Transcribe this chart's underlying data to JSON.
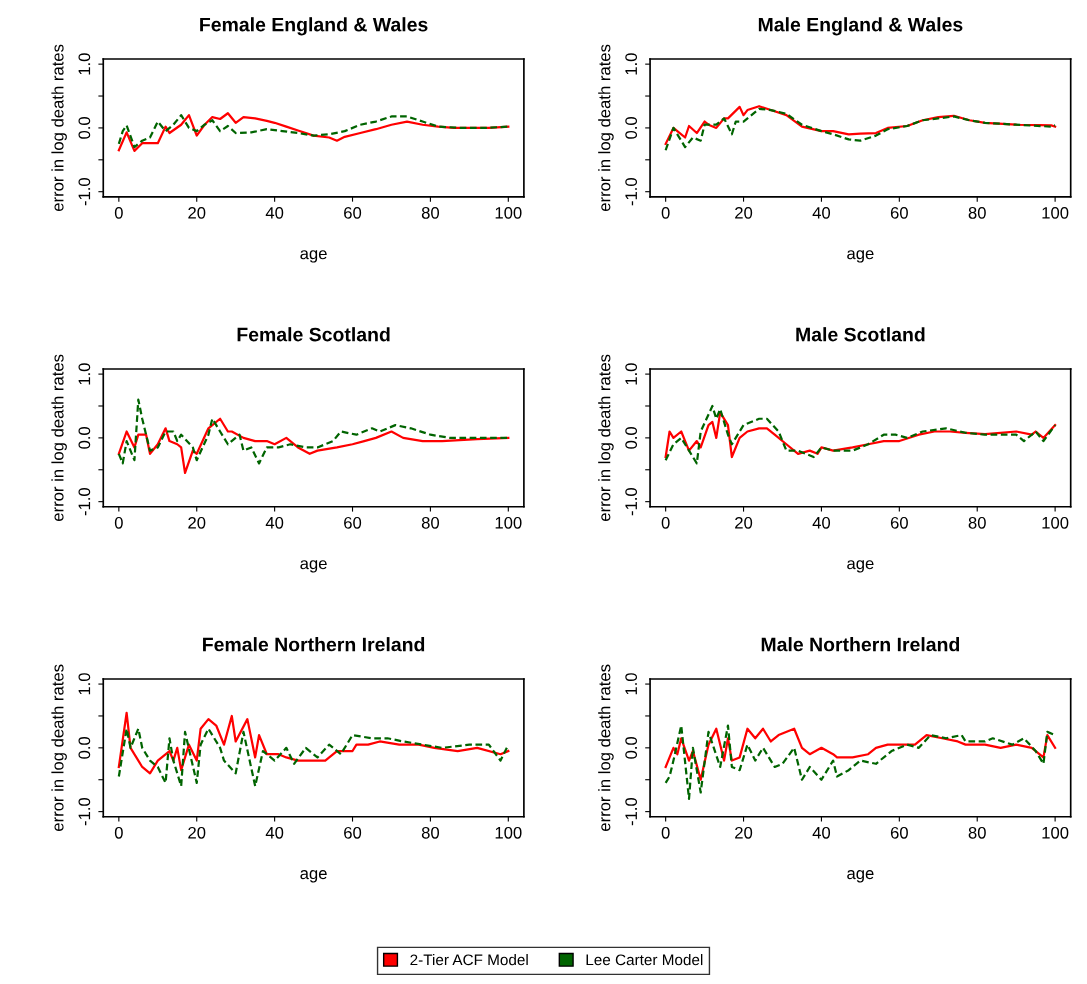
{
  "chart_data": [
    {
      "type": "line",
      "title": "Female England & Wales",
      "xlabel": "age",
      "ylabel": "error in log death rates",
      "xlim": [
        -4,
        104
      ],
      "ylim": [
        -1.08,
        1.08
      ],
      "xticks": [
        0,
        20,
        40,
        60,
        80,
        100
      ],
      "yticks": [
        {
          "value": -1,
          "label": "-1.0"
        },
        {
          "value": -0.5,
          "label": null
        },
        {
          "value": 0,
          "label": "0.0"
        },
        {
          "value": 0.5,
          "label": null
        },
        {
          "value": 1,
          "label": "1.0"
        }
      ],
      "grid": false,
      "legend": "bottom",
      "series": [
        {
          "name": "2-Tier ACF Model",
          "color": "#ff0000",
          "line_style": "solid",
          "x": [
            0,
            2,
            4,
            6,
            10,
            12,
            13,
            16,
            18,
            20,
            22,
            24,
            26,
            28,
            30,
            32,
            35,
            38,
            40,
            43,
            46,
            50,
            54,
            56,
            58,
            62,
            66,
            70,
            74,
            78,
            82,
            86,
            90,
            95,
            100
          ],
          "values": [
            -0.35,
            -0.07,
            -0.36,
            -0.24,
            -0.24,
            0.02,
            -0.08,
            0.05,
            0.2,
            -0.12,
            0.05,
            0.17,
            0.14,
            0.23,
            0.08,
            0.17,
            0.15,
            0.11,
            0.08,
            0.02,
            -0.04,
            -0.12,
            -0.15,
            -0.2,
            -0.14,
            -0.08,
            -0.02,
            0.05,
            0.1,
            0.05,
            0.02,
            0.0,
            0.0,
            0.0,
            0.02
          ]
        },
        {
          "name": "Lee Carter Model",
          "color": "#006400",
          "line_style": "dashed",
          "x": [
            0,
            1,
            2,
            4,
            6,
            8,
            10,
            12,
            14,
            16,
            18,
            20,
            22,
            24,
            26,
            28,
            30,
            34,
            38,
            42,
            46,
            50,
            54,
            58,
            62,
            66,
            70,
            74,
            78,
            82,
            88,
            94,
            100
          ],
          "values": [
            -0.25,
            -0.05,
            0.04,
            -0.3,
            -0.2,
            -0.15,
            0.1,
            -0.05,
            0.05,
            0.2,
            0.0,
            -0.05,
            0.05,
            0.12,
            -0.05,
            0.03,
            -0.08,
            -0.07,
            -0.02,
            -0.05,
            -0.08,
            -0.12,
            -0.1,
            -0.05,
            0.05,
            0.1,
            0.18,
            0.18,
            0.1,
            0.02,
            0.0,
            0.0,
            0.02
          ]
        }
      ]
    },
    {
      "type": "line",
      "title": "Male England & Wales",
      "xlabel": "age",
      "ylabel": "error in log death rates",
      "xlim": [
        -4,
        104
      ],
      "ylim": [
        -1.08,
        1.08
      ],
      "xticks": [
        0,
        20,
        40,
        60,
        80,
        100
      ],
      "yticks": [
        {
          "value": -1,
          "label": "-1.0"
        },
        {
          "value": -0.5,
          "label": null
        },
        {
          "value": 0,
          "label": "0.0"
        },
        {
          "value": 0.5,
          "label": null
        },
        {
          "value": 1,
          "label": "1.0"
        }
      ],
      "grid": false,
      "series": [
        {
          "color": "#ff0000",
          "line_style": "solid",
          "x": [
            0,
            2,
            3,
            5,
            6,
            8,
            10,
            11,
            13,
            15,
            16,
            19,
            20,
            21,
            24,
            27,
            31,
            35,
            40,
            43,
            47,
            50,
            54,
            57,
            62,
            66,
            70,
            74,
            78,
            82,
            90,
            99,
            100
          ],
          "values": [
            -0.25,
            0.0,
            -0.05,
            -0.15,
            0.03,
            -0.08,
            0.1,
            0.05,
            0.0,
            0.15,
            0.15,
            0.33,
            0.2,
            0.28,
            0.34,
            0.28,
            0.2,
            0.02,
            -0.05,
            -0.05,
            -0.1,
            -0.09,
            -0.08,
            0.0,
            0.03,
            0.12,
            0.17,
            0.19,
            0.12,
            0.08,
            0.05,
            0.04,
            0.02
          ]
        },
        {
          "color": "#006400",
          "line_style": "dashed",
          "x": [
            0,
            2,
            3,
            5,
            7,
            9,
            10,
            13,
            15,
            17,
            18,
            20,
            24,
            27,
            31,
            35,
            40,
            43,
            47,
            50,
            54,
            57,
            62,
            66,
            70,
            74,
            78,
            82,
            90,
            99,
            100
          ],
          "values": [
            -0.35,
            0.0,
            -0.1,
            -0.3,
            -0.15,
            -0.2,
            0.05,
            0.05,
            0.15,
            -0.1,
            0.1,
            0.1,
            0.3,
            0.28,
            0.22,
            0.05,
            -0.05,
            -0.1,
            -0.18,
            -0.2,
            -0.12,
            -0.02,
            0.03,
            0.12,
            0.15,
            0.18,
            0.12,
            0.08,
            0.05,
            0.02,
            0.04
          ]
        }
      ]
    },
    {
      "type": "line",
      "title": "Female Scotland",
      "xlabel": "age",
      "ylabel": "error in log death rates",
      "xlim": [
        -4,
        104
      ],
      "ylim": [
        -1.08,
        1.08
      ],
      "xticks": [
        0,
        20,
        40,
        60,
        80,
        100
      ],
      "yticks": [
        {
          "value": -1,
          "label": "-1.0"
        },
        {
          "value": -0.5,
          "label": null
        },
        {
          "value": 0,
          "label": "0.0"
        },
        {
          "value": 0.5,
          "label": null
        },
        {
          "value": 1,
          "label": "1.0"
        }
      ],
      "grid": false,
      "series": [
        {
          "color": "#ff0000",
          "line_style": "solid",
          "x": [
            0,
            2,
            4,
            5,
            7,
            8,
            10,
            12,
            13,
            15,
            16,
            17,
            19,
            20,
            23,
            26,
            28,
            29,
            32,
            35,
            38,
            40,
            43,
            46,
            49,
            51,
            56,
            60,
            63,
            66,
            70,
            73,
            78,
            83,
            92,
            100
          ],
          "values": [
            -0.25,
            0.1,
            -0.15,
            0.05,
            0.05,
            -0.25,
            -0.1,
            0.15,
            -0.05,
            -0.1,
            -0.15,
            -0.55,
            -0.2,
            -0.25,
            0.15,
            0.3,
            0.1,
            0.1,
            0.0,
            -0.05,
            -0.05,
            -0.1,
            0.0,
            -0.15,
            -0.25,
            -0.2,
            -0.15,
            -0.1,
            -0.05,
            0.0,
            0.1,
            0.0,
            -0.05,
            -0.05,
            -0.02,
            0.0
          ]
        },
        {
          "color": "#006400",
          "line_style": "dashed",
          "x": [
            0,
            1,
            2,
            4,
            5,
            6,
            8,
            10,
            12,
            14,
            15,
            16,
            19,
            20,
            23,
            24,
            26,
            28,
            31,
            32,
            34,
            36,
            38,
            41,
            44,
            48,
            51,
            55,
            57,
            61,
            65,
            67,
            71,
            75,
            80,
            85,
            92,
            100
          ],
          "values": [
            -0.25,
            -0.4,
            -0.05,
            -0.35,
            0.6,
            0.3,
            -0.2,
            -0.15,
            0.1,
            0.1,
            -0.05,
            0.05,
            -0.15,
            -0.35,
            0.05,
            0.3,
            0.1,
            -0.1,
            0.05,
            -0.2,
            -0.15,
            -0.4,
            -0.15,
            -0.15,
            -0.1,
            -0.15,
            -0.15,
            -0.05,
            0.1,
            0.05,
            0.15,
            0.1,
            0.2,
            0.15,
            0.05,
            0.0,
            0.0,
            0.0
          ]
        }
      ]
    },
    {
      "type": "line",
      "title": "Male Scotland",
      "xlabel": "age",
      "ylabel": "error in log death rates",
      "xlim": [
        -4,
        104
      ],
      "ylim": [
        -1.08,
        1.08
      ],
      "xticks": [
        0,
        20,
        40,
        60,
        80,
        100
      ],
      "yticks": [
        {
          "value": -1,
          "label": "-1.0"
        },
        {
          "value": -0.5,
          "label": null
        },
        {
          "value": 0,
          "label": "0.0"
        },
        {
          "value": 0.5,
          "label": null
        },
        {
          "value": 1,
          "label": "1.0"
        }
      ],
      "grid": false,
      "series": [
        {
          "color": "#ff0000",
          "line_style": "solid",
          "x": [
            0,
            1,
            2,
            4,
            5,
            6,
            8,
            9,
            11,
            12,
            13,
            14,
            16,
            17,
            19,
            21,
            24,
            26,
            28,
            31,
            34,
            37,
            39,
            40,
            43,
            48,
            52,
            56,
            60,
            65,
            69,
            73,
            77,
            82,
            86,
            90,
            94,
            95,
            97,
            100
          ],
          "values": [
            -0.3,
            0.1,
            0.0,
            0.1,
            -0.05,
            -0.2,
            -0.05,
            -0.15,
            0.2,
            0.25,
            0.0,
            0.4,
            0.2,
            -0.3,
            0.0,
            0.1,
            0.15,
            0.15,
            0.05,
            -0.1,
            -0.25,
            -0.2,
            -0.25,
            -0.15,
            -0.2,
            -0.15,
            -0.1,
            -0.05,
            -0.05,
            0.05,
            0.1,
            0.1,
            0.08,
            0.06,
            0.08,
            0.1,
            0.05,
            0.1,
            0.0,
            0.2
          ]
        },
        {
          "color": "#006400",
          "line_style": "dashed",
          "x": [
            0,
            2,
            4,
            6,
            8,
            9,
            12,
            13,
            14,
            16,
            17,
            20,
            24,
            26,
            29,
            31,
            34,
            38,
            40,
            43,
            48,
            52,
            56,
            59,
            62,
            66,
            72,
            77,
            82,
            86,
            90,
            92,
            95,
            97,
            100
          ],
          "values": [
            -0.35,
            -0.1,
            0.0,
            -0.2,
            -0.4,
            0.1,
            0.5,
            0.3,
            0.45,
            0.05,
            -0.1,
            0.2,
            0.3,
            0.3,
            0.1,
            -0.2,
            -0.2,
            -0.3,
            -0.15,
            -0.2,
            -0.2,
            -0.1,
            0.05,
            0.05,
            0.0,
            0.1,
            0.15,
            0.08,
            0.05,
            0.05,
            0.05,
            -0.05,
            0.1,
            -0.05,
            0.2
          ]
        }
      ]
    },
    {
      "type": "line",
      "title": "Female Northern Ireland",
      "xlabel": "age",
      "ylabel": "error in log death rates",
      "xlim": [
        -4,
        104
      ],
      "ylim": [
        -1.08,
        1.08
      ],
      "xticks": [
        0,
        20,
        40,
        60,
        80,
        100
      ],
      "yticks": [
        {
          "value": -1,
          "label": "-1.0"
        },
        {
          "value": -0.5,
          "label": null
        },
        {
          "value": 0,
          "label": "0.0"
        },
        {
          "value": 0.5,
          "label": null
        },
        {
          "value": 1,
          "label": "1.0"
        }
      ],
      "grid": false,
      "series": [
        {
          "color": "#ff0000",
          "line_style": "solid",
          "x": [
            0,
            2,
            3,
            6,
            8,
            10,
            13,
            14,
            15,
            16,
            18,
            20,
            21,
            23,
            25,
            27,
            29,
            30,
            33,
            35,
            36,
            38,
            41,
            43,
            46,
            49,
            53,
            56,
            60,
            61,
            64,
            67,
            72,
            77,
            81,
            87,
            92,
            98,
            100
          ],
          "values": [
            -0.3,
            0.55,
            0.0,
            -0.3,
            -0.4,
            -0.2,
            -0.05,
            -0.2,
            0.0,
            -0.35,
            0.05,
            -0.2,
            0.3,
            0.45,
            0.35,
            0.05,
            0.5,
            0.1,
            0.45,
            -0.15,
            0.2,
            -0.1,
            -0.1,
            -0.15,
            -0.2,
            -0.2,
            -0.2,
            -0.05,
            -0.05,
            0.05,
            0.05,
            0.1,
            0.05,
            0.05,
            0.0,
            -0.05,
            0.0,
            -0.1,
            -0.05
          ]
        },
        {
          "color": "#006400",
          "line_style": "dashed",
          "x": [
            0,
            2,
            3,
            5,
            6,
            8,
            10,
            12,
            13,
            14,
            16,
            17,
            20,
            21,
            23,
            26,
            27,
            30,
            32,
            35,
            37,
            40,
            43,
            45,
            48,
            51,
            54,
            57,
            60,
            65,
            69,
            73,
            78,
            83,
            90,
            95,
            98,
            100
          ],
          "values": [
            -0.45,
            0.3,
            0.0,
            0.3,
            0.0,
            -0.2,
            -0.3,
            -0.55,
            0.15,
            -0.2,
            -0.6,
            0.25,
            -0.55,
            0.05,
            0.3,
            0.0,
            -0.2,
            -0.4,
            0.25,
            -0.6,
            -0.05,
            -0.2,
            0.0,
            -0.25,
            0.0,
            -0.15,
            0.05,
            -0.1,
            0.2,
            0.15,
            0.15,
            0.1,
            0.05,
            0.0,
            0.05,
            0.05,
            -0.2,
            0.05
          ]
        }
      ]
    },
    {
      "type": "line",
      "title": "Male Northern Ireland",
      "xlabel": "age",
      "ylabel": "error in log death rates",
      "xlim": [
        -4,
        104
      ],
      "ylim": [
        -1.08,
        1.08
      ],
      "xticks": [
        0,
        20,
        40,
        60,
        80,
        100
      ],
      "yticks": [
        {
          "value": -1,
          "label": "-1.0"
        },
        {
          "value": -0.5,
          "label": null
        },
        {
          "value": 0,
          "label": "0.0"
        },
        {
          "value": 0.5,
          "label": null
        },
        {
          "value": 1,
          "label": "1.0"
        }
      ],
      "grid": false,
      "series": [
        {
          "color": "#ff0000",
          "line_style": "solid",
          "x": [
            0,
            2,
            3,
            4,
            6,
            7,
            9,
            11,
            13,
            15,
            16,
            17,
            19,
            21,
            23,
            25,
            27,
            29,
            33,
            35,
            37,
            40,
            43,
            44,
            48,
            52,
            54,
            57,
            60,
            64,
            67,
            71,
            75,
            77,
            82,
            86,
            90,
            94,
            97,
            98,
            100
          ],
          "values": [
            -0.3,
            0.0,
            -0.1,
            0.15,
            -0.2,
            -0.05,
            -0.5,
            0.05,
            0.3,
            -0.2,
            0.15,
            -0.2,
            -0.15,
            0.3,
            0.15,
            0.3,
            0.1,
            0.2,
            0.3,
            0.0,
            -0.1,
            0.0,
            -0.1,
            -0.15,
            -0.15,
            -0.1,
            0.0,
            0.05,
            0.05,
            0.05,
            0.2,
            0.15,
            0.1,
            0.05,
            0.05,
            0.0,
            0.05,
            0.0,
            -0.15,
            0.2,
            0.0
          ]
        },
        {
          "color": "#006400",
          "line_style": "dashed",
          "x": [
            0,
            1,
            2,
            4,
            6,
            7,
            9,
            11,
            14,
            16,
            17,
            19,
            21,
            23,
            25,
            28,
            30,
            33,
            35,
            37,
            40,
            43,
            44,
            47,
            50,
            54,
            58,
            62,
            65,
            68,
            72,
            76,
            77,
            82,
            84,
            89,
            92,
            95,
            97,
            98,
            100
          ],
          "values": [
            -0.55,
            -0.45,
            -0.2,
            0.35,
            -0.8,
            0.0,
            -0.7,
            0.25,
            -0.3,
            0.35,
            -0.3,
            -0.35,
            0.05,
            -0.2,
            0.0,
            -0.3,
            -0.25,
            0.0,
            -0.5,
            -0.3,
            -0.5,
            -0.2,
            -0.45,
            -0.35,
            -0.2,
            -0.25,
            -0.05,
            0.05,
            0.0,
            0.2,
            0.15,
            0.2,
            0.1,
            0.1,
            0.15,
            0.05,
            0.15,
            -0.05,
            -0.25,
            0.25,
            0.2
          ]
        }
      ]
    }
  ]
}
